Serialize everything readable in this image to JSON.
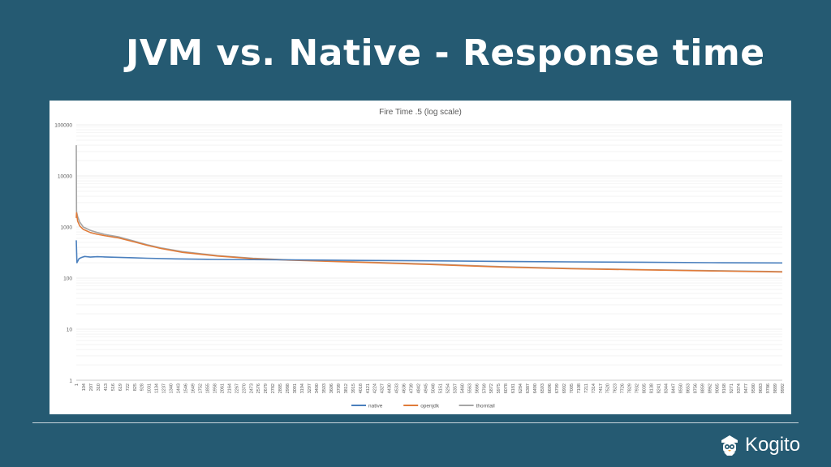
{
  "slide": {
    "title": "JVM vs. Native - Response time",
    "brand_name": "Kogito",
    "brand_icon": "kogito-logo-icon"
  },
  "colors": {
    "background": "#255a72",
    "native": "#4a7fbd",
    "openjdk": "#e07b39",
    "thorntail": "#a5a5a5"
  },
  "chart_data": {
    "type": "line",
    "title": "Fire Time .5 (log scale)",
    "xlabel": "",
    "ylabel": "",
    "y_scale": "log",
    "ylim": [
      1,
      100000
    ],
    "y_ticks": [
      1,
      10,
      100,
      1000,
      10000,
      100000
    ],
    "x_range": [
      1,
      9992
    ],
    "x_tick_labels": [
      "1",
      "104",
      "207",
      "310",
      "413",
      "516",
      "619",
      "722",
      "825",
      "928",
      "1031",
      "1134",
      "1237",
      "1340",
      "1443",
      "1546",
      "1649",
      "1752",
      "1855",
      "1958",
      "2061",
      "2164",
      "2267",
      "2370",
      "2473",
      "2576",
      "2679",
      "2782",
      "2885",
      "2988",
      "3091",
      "3194",
      "3297",
      "3400",
      "3503",
      "3606",
      "3709",
      "3812",
      "3915",
      "4018",
      "4121",
      "4224",
      "4327",
      "4430",
      "4533",
      "4636",
      "4739",
      "4842",
      "4945",
      "5048",
      "5151",
      "5254",
      "5357",
      "5460",
      "5563",
      "5666",
      "5769",
      "5872",
      "5975",
      "6078",
      "6181",
      "6284",
      "6387",
      "6490",
      "6593",
      "6696",
      "6799",
      "6902",
      "7005",
      "7108",
      "7211",
      "7314",
      "7417",
      "7520",
      "7623",
      "7726",
      "7829",
      "7932",
      "8035",
      "8138",
      "8241",
      "8344",
      "8447",
      "8550",
      "8653",
      "8756",
      "8859",
      "8962",
      "9065",
      "9168",
      "9271",
      "9374",
      "9477",
      "9580",
      "9683",
      "9786",
      "9889",
      "9992"
    ],
    "grid": true,
    "legend_position": "bottom",
    "series": [
      {
        "name": "native",
        "x": [
          1,
          10,
          40,
          80,
          120,
          200,
          300,
          400,
          600,
          800,
          1000,
          1400,
          2000,
          3000,
          4000,
          5000,
          6000,
          7000,
          8000,
          9000,
          9992
        ],
        "y": [
          550,
          200,
          240,
          255,
          265,
          258,
          262,
          260,
          255,
          250,
          245,
          238,
          232,
          228,
          222,
          218,
          212,
          208,
          205,
          200,
          198
        ]
      },
      {
        "name": "openjdk",
        "x": [
          1,
          5,
          20,
          50,
          100,
          200,
          300,
          400,
          600,
          800,
          1000,
          1200,
          1500,
          2000,
          2500,
          3000,
          4000,
          5000,
          6000,
          7000,
          8000,
          9000,
          9992
        ],
        "y": [
          1500,
          1900,
          1300,
          1050,
          900,
          780,
          720,
          680,
          610,
          520,
          440,
          380,
          320,
          270,
          240,
          225,
          205,
          185,
          165,
          152,
          145,
          138,
          132
        ]
      },
      {
        "name": "thorntail",
        "x": [
          1,
          5,
          20,
          50,
          100,
          200,
          300,
          400,
          600,
          800,
          1000,
          1200,
          1500,
          2000,
          2500,
          3000,
          4000,
          5000,
          6000,
          7000,
          8000,
          9000,
          9992
        ],
        "y": [
          40000,
          2000,
          1600,
          1250,
          1000,
          860,
          780,
          720,
          640,
          540,
          450,
          390,
          330,
          275,
          245,
          228,
          208,
          188,
          168,
          155,
          147,
          140,
          134
        ]
      }
    ]
  }
}
